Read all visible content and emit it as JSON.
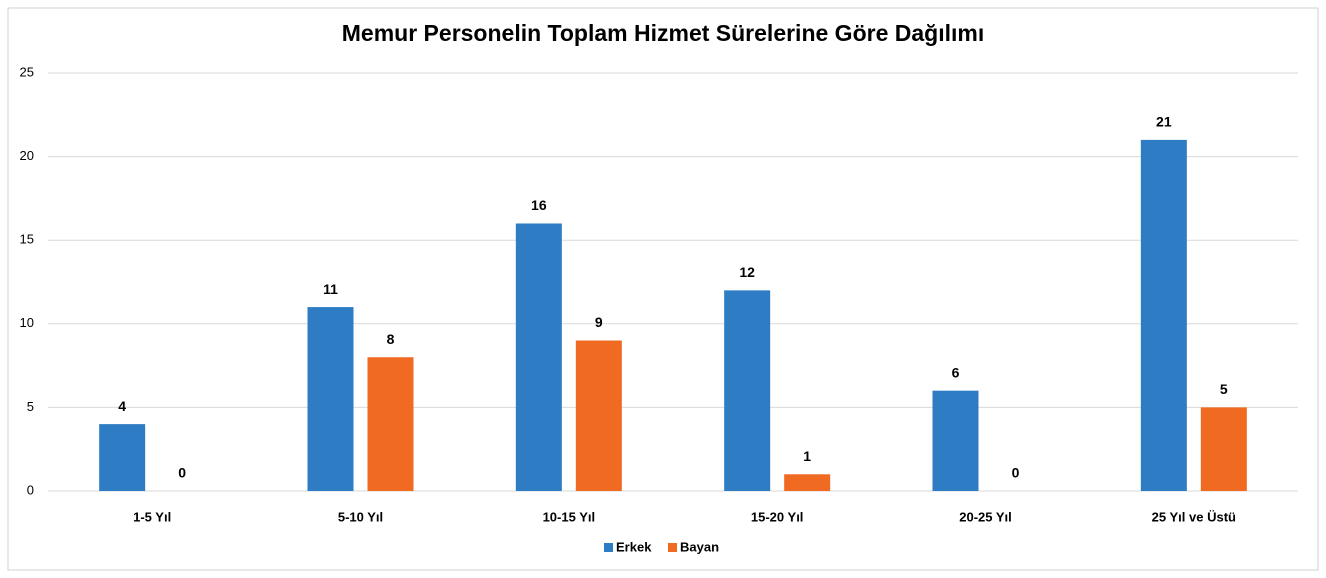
{
  "chart_data": {
    "type": "bar",
    "title": "Memur Personelin Toplam Hizmet Sürelerine Göre Dağılımı",
    "categories": [
      "1-5 Yıl",
      "5-10 Yıl",
      "10-15 Yıl",
      "15-20 Yıl",
      "20-25 Yıl",
      "25 Yıl ve Üstü"
    ],
    "series": [
      {
        "name": "Erkek",
        "color": "#2e7dc4",
        "values": [
          4,
          11,
          16,
          12,
          6,
          21
        ]
      },
      {
        "name": "Bayan",
        "color": "#f06a22",
        "values": [
          0,
          8,
          9,
          1,
          0,
          5
        ]
      }
    ],
    "ylim": [
      0,
      25
    ],
    "yticks": [
      0,
      5,
      10,
      15,
      20,
      25
    ],
    "grid": true,
    "legend": "bottom"
  }
}
